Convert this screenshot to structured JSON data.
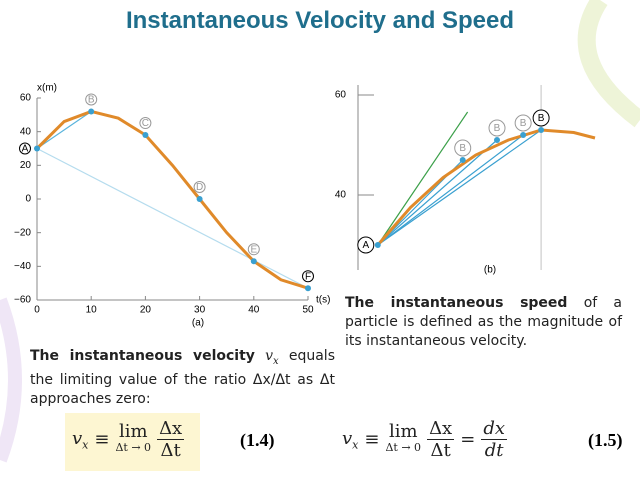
{
  "title": "Instantaneous Velocity and Speed",
  "para1": {
    "bold": "The instantaneous velocity",
    "var": "v",
    "sub": "x",
    "rest": "equals the limiting value of the ratio Δx/Δt as Δt approaches zero:"
  },
  "para2": {
    "bold": "The instantaneous speed",
    "rest": "of a particle is defined as the magnitude of its instantaneous velocity."
  },
  "equations": [
    {
      "var": "v",
      "sub": "x",
      "op": "≡",
      "lim": "lim",
      "lim_sub": "Δt → 0",
      "num": "Δx",
      "den": "Δt",
      "number": "(1.4)"
    },
    {
      "var": "v",
      "sub": "x",
      "op": "≡",
      "lim": "lim",
      "lim_sub": "Δt → 0",
      "num": "Δx",
      "den": "Δt",
      "eq": "=",
      "rhs_num": "dx",
      "rhs_den": "dt",
      "number": "(1.5)"
    }
  ],
  "chart_data": [
    {
      "type": "line",
      "y_label": "x(m)",
      "x_label": "t(s)",
      "caption": "(a)",
      "xlim": [
        0,
        50
      ],
      "ylim": [
        -60,
        60
      ],
      "xticks": [
        0,
        10,
        20,
        30,
        40,
        50
      ],
      "yticks": [
        {
          "value": -60,
          "label": "−60"
        },
        {
          "value": -40,
          "label": "−40"
        },
        {
          "value": -20,
          "label": "−20"
        },
        0,
        20,
        40,
        60
      ],
      "x": [
        0,
        5,
        10,
        15,
        20,
        25,
        30,
        35,
        40,
        45,
        50
      ],
      "series": [
        {
          "color": "#e08a2a",
          "values": [
            30,
            46,
            52,
            48,
            38,
            20,
            0,
            -20,
            -37,
            -48,
            -53
          ]
        }
      ],
      "lines": [
        {
          "color": "#5ab4dc",
          "x": [
            0,
            10
          ],
          "values": [
            30,
            52
          ]
        },
        {
          "color": "#b5dcee",
          "x": [
            0,
            50
          ],
          "values": [
            30,
            -53
          ]
        }
      ],
      "points": {
        "color": "#3aa0d0",
        "x": [
          0,
          10,
          20,
          30,
          40,
          50
        ],
        "values": [
          30,
          52,
          38,
          0,
          -37,
          -53
        ],
        "labels": [
          "A",
          "B",
          "C",
          "D",
          "E",
          "F"
        ]
      }
    },
    {
      "type": "line",
      "caption": "(b)",
      "xlim": [
        -0.6,
        13.3
      ],
      "ylim": [
        25,
        62
      ],
      "yticks": [
        40,
        60
      ],
      "x": [
        0,
        2,
        4,
        6,
        8,
        10,
        12,
        13.3
      ],
      "series": [
        {
          "color": "#e08a2a",
          "values": [
            30,
            37.5,
            43.5,
            48,
            51,
            53,
            52.5,
            51.4
          ]
        }
      ],
      "lines": [
        {
          "color": "#cccccc",
          "x": [
            10,
            10
          ],
          "values": [
            25,
            62
          ]
        },
        {
          "color": "#3ca04a",
          "x": [
            0,
            5.5
          ],
          "values": [
            30,
            56.6
          ]
        },
        {
          "color": "#3aa0d0",
          "x": [
            0,
            5.2
          ],
          "values": [
            30,
            47
          ]
        },
        {
          "color": "#3aa0d0",
          "x": [
            0,
            7.3
          ],
          "values": [
            30,
            51
          ]
        },
        {
          "color": "#3aa0d0",
          "x": [
            0,
            8.9
          ],
          "values": [
            30,
            52
          ]
        },
        {
          "color": "#3aa0d0",
          "x": [
            0,
            10
          ],
          "values": [
            30,
            53
          ]
        }
      ],
      "points": {
        "color": "#3aa0d0",
        "x": [
          0,
          5.2,
          7.3,
          8.9,
          10
        ],
        "values": [
          30,
          47,
          51,
          52,
          53
        ],
        "labels": [
          "A",
          "B",
          "B",
          "B",
          "B"
        ]
      }
    }
  ]
}
